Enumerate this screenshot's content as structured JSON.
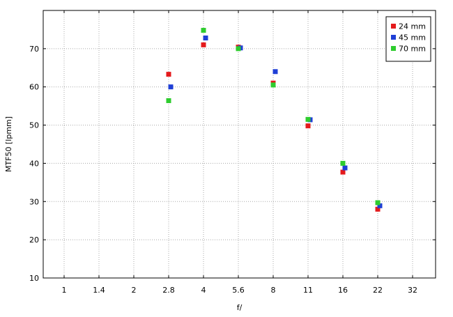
{
  "chart_data": {
    "type": "scatter",
    "x_categories": [
      "1",
      "1.4",
      "2",
      "2.8",
      "4",
      "5.6",
      "8",
      "11",
      "16",
      "22",
      "32"
    ],
    "xlabel": "f/",
    "ylabel": "MTF50 [lpmm]",
    "ylim": [
      10,
      80
    ],
    "yticks": [
      10,
      20,
      30,
      40,
      50,
      60,
      70
    ],
    "grid": true,
    "legend_position": "top-right",
    "series": [
      {
        "name": "24 mm",
        "color": "#e41a1c",
        "points": [
          {
            "x": "2.8",
            "y": 63.3
          },
          {
            "x": "4",
            "y": 71.0
          },
          {
            "x": "5.6",
            "y": 70.4
          },
          {
            "x": "8",
            "y": 61.0
          },
          {
            "x": "11",
            "y": 49.8
          },
          {
            "x": "16",
            "y": 37.7
          },
          {
            "x": "22",
            "y": 28.0
          }
        ]
      },
      {
        "name": "45 mm",
        "color": "#1f3fd6",
        "points": [
          {
            "x": "2.8",
            "y": 60.0
          },
          {
            "x": "4",
            "y": 72.8
          },
          {
            "x": "5.6",
            "y": 70.2
          },
          {
            "x": "8",
            "y": 64.0
          },
          {
            "x": "11",
            "y": 51.4
          },
          {
            "x": "16",
            "y": 38.8
          },
          {
            "x": "22",
            "y": 28.9
          }
        ]
      },
      {
        "name": "70 mm",
        "color": "#2ecc2e",
        "points": [
          {
            "x": "2.8",
            "y": 56.4
          },
          {
            "x": "4",
            "y": 74.8
          },
          {
            "x": "5.6",
            "y": 70.0
          },
          {
            "x": "8",
            "y": 60.5
          },
          {
            "x": "11",
            "y": 51.5
          },
          {
            "x": "16",
            "y": 40.0
          },
          {
            "x": "22",
            "y": 29.7
          }
        ]
      }
    ]
  }
}
